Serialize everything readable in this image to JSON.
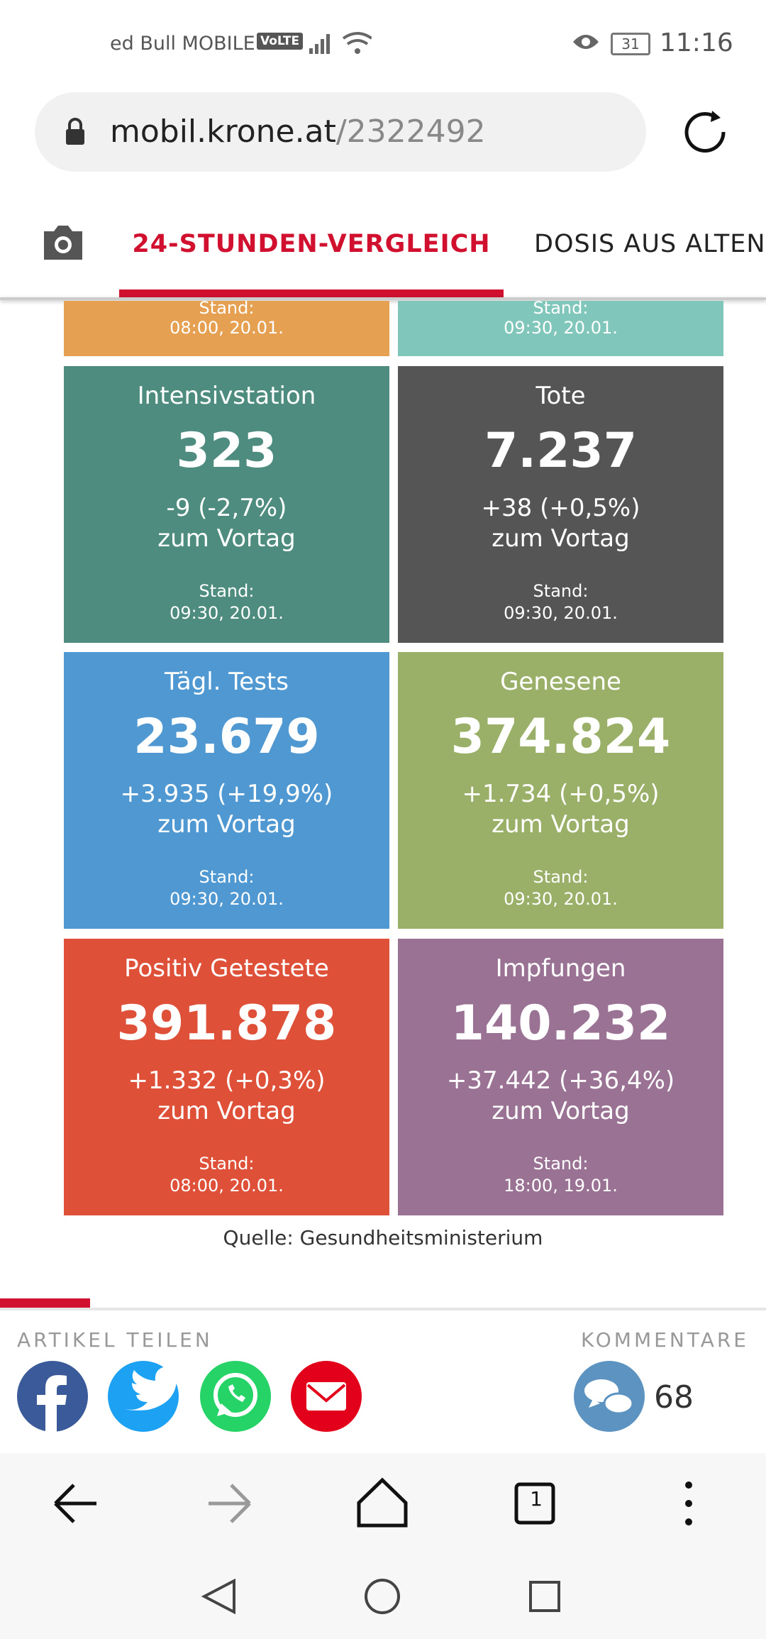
{
  "status_bar": {
    "carrier": "ed Bull MOBILE",
    "network": "VoLTE",
    "battery": "31",
    "time": "11:16"
  },
  "browser": {
    "domain": "mobil.krone.at",
    "path": "/2322492"
  },
  "tabs": [
    "24-STUNDEN-VERGLEICH",
    "DOSIS AUS ALTEN"
  ],
  "partial_tiles": [
    {
      "stand": "Stand:",
      "date": "08:00, 20.01.",
      "color": "#e5a052"
    },
    {
      "stand": "Stand:",
      "date": "09:30, 20.01.",
      "color": "#80c6ba"
    }
  ],
  "tiles": [
    {
      "title": "Intensivstation",
      "value": "323",
      "change": "-9 (-2,7%)",
      "note": "zum Vortag",
      "stand": "Stand:",
      "date": "09:30, 20.01.",
      "color": "#4e8c7f"
    },
    {
      "title": "Tote",
      "value": "7.237",
      "change": "+38 (+0,5%)",
      "note": "zum Vortag",
      "stand": "Stand:",
      "date": "09:30, 20.01.",
      "color": "#555555"
    },
    {
      "title": "Tägl. Tests",
      "value": "23.679",
      "change": "+3.935 (+19,9%)",
      "note": "zum Vortag",
      "stand": "Stand:",
      "date": "09:30, 20.01.",
      "color": "#4f98d1"
    },
    {
      "title": "Genesene",
      "value": "374.824",
      "change": "+1.734 (+0,5%)",
      "note": "zum Vortag",
      "stand": "Stand:",
      "date": "09:30, 20.01.",
      "color": "#9aaf67"
    },
    {
      "title": "Positiv Getestete",
      "value": "391.878",
      "change": "+1.332 (+0,3%)",
      "note": "zum Vortag",
      "stand": "Stand:",
      "date": "08:00, 20.01.",
      "color": "#df5039"
    },
    {
      "title": "Impfungen",
      "value": "140.232",
      "change": "+37.442 (+36,4%)",
      "note": "zum Vortag",
      "stand": "Stand:",
      "date": "18:00, 19.01.",
      "color": "#9a7394"
    }
  ],
  "source": "Quelle: Gesundheitsministerium",
  "share": {
    "label": "ARTIKEL TEILEN",
    "comments_label": "KOMMENTARE",
    "comments_count": "68"
  },
  "nav": {
    "tab_count": "1"
  }
}
